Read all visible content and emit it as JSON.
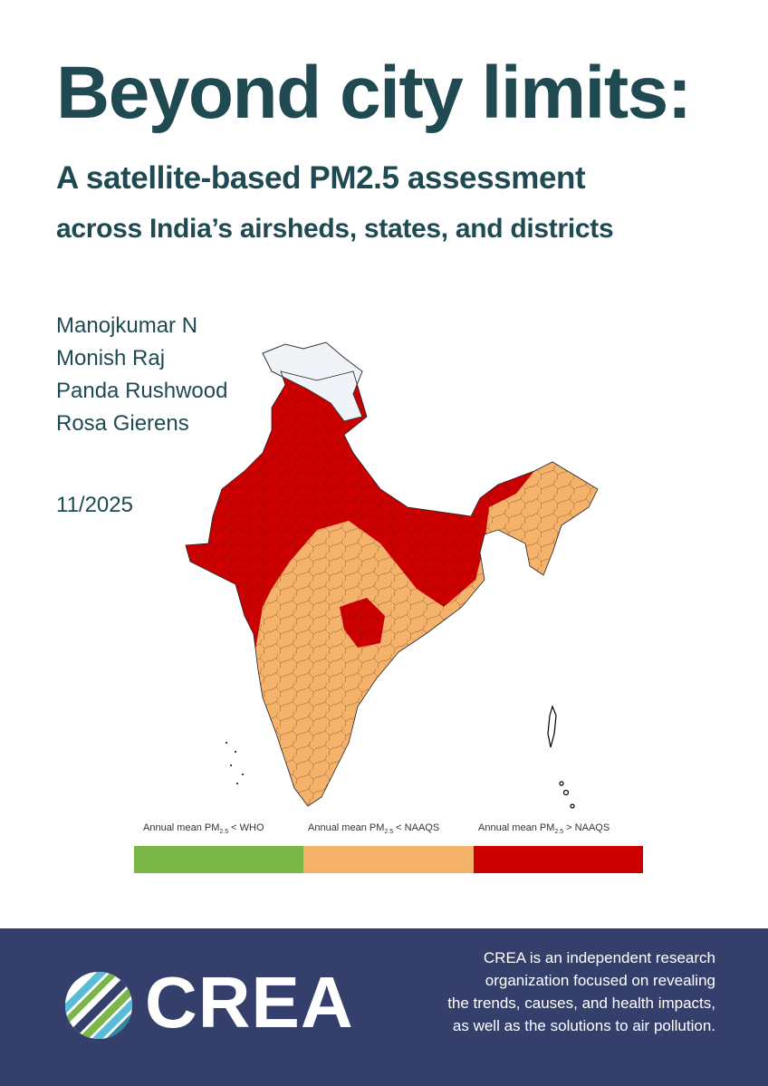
{
  "title": "Beyond city limits:",
  "subtitle": {
    "line1": "A satellite-based PM2.5 assessment",
    "line2": "across India’s airsheds, states, and districts"
  },
  "authors": [
    "Manojkumar N",
    "Monish Raj",
    "Panda Rushwood",
    "Rosa Gierens"
  ],
  "date": "11/2025",
  "map_legend": [
    {
      "prefix": "Annual mean PM",
      "sub": "2.5",
      "suffix": " < WHO",
      "color": "#7ab648"
    },
    {
      "prefix": "Annual mean PM",
      "sub": "2.5",
      "suffix": " < NAAQS",
      "color": "#f5b26b"
    },
    {
      "prefix": "Annual mean PM",
      "sub": "2.5",
      "suffix": " > NAAQS",
      "color": "#cc0000"
    }
  ],
  "colors": {
    "title": "#1f4a52",
    "footer_bg": "#34406b",
    "kashmir_fill": "#f0f4f8"
  },
  "footer": {
    "logo_text": "CREA",
    "tagline": [
      "CREA is an independent research",
      "organization focused on revealing",
      "the trends, causes, and health impacts,",
      "as well as the solutions to air pollution."
    ]
  }
}
